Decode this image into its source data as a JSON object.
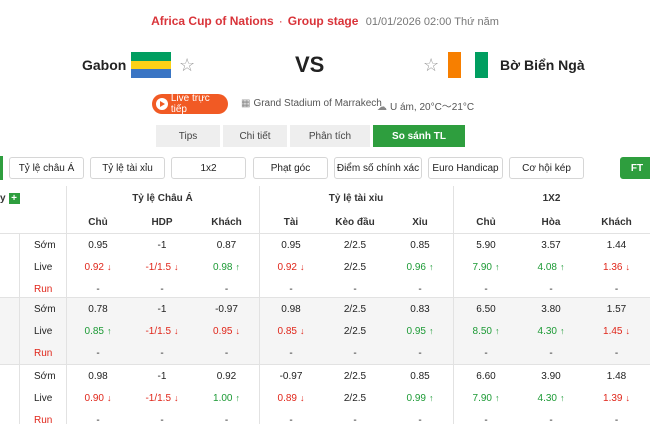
{
  "header": {
    "league": "Africa Cup of Nations",
    "separator": "·",
    "stage": "Group stage",
    "datetime": "01/01/2026 02:00 Thứ năm"
  },
  "match": {
    "home": "Gabon",
    "away": "Bờ Biển Ngà",
    "vs": "VS",
    "live_label": "Live trực tiếp",
    "stadium": "Grand Stadium of Marrakech",
    "weather": "U ám, 20°C～21°C"
  },
  "tabs": [
    "Tips",
    "Chi tiết",
    "Phân tích",
    "So sánh TL"
  ],
  "filters": [
    "Tỷ lệ châu Á",
    "Tỷ lệ tài xỉu",
    "1x2",
    "Phạt góc",
    "Điểm số chính xác",
    "Euro Handicap",
    "Cơ hội kép",
    "FT"
  ],
  "table": {
    "left_stub": "y",
    "groups": [
      "Tỷ lệ Châu Á",
      "Tỷ lệ tài xỉu",
      "1X2"
    ],
    "columns": [
      "Chủ",
      "HDP",
      "Khách",
      "Tài",
      "Kèo đầu",
      "Xỉu",
      "Chủ",
      "Hòa",
      "Khách"
    ],
    "row_labels": [
      "Sớm",
      "Live",
      "Run"
    ],
    "blocks": [
      {
        "rows": [
          [
            "0.95",
            "-1",
            "0.87",
            "0.95",
            "2/2.5",
            "0.85",
            "5.90",
            "3.57",
            "1.44"
          ],
          [
            "0.92",
            "-1/1.5",
            "0.98",
            "0.92",
            "2/2.5",
            "0.96",
            "7.90",
            "4.08",
            "1.36"
          ],
          [
            "-",
            "-",
            "-",
            "-",
            "-",
            "-",
            "-",
            "-",
            "-"
          ]
        ],
        "live_trend": [
          "down",
          "down",
          "up",
          "down",
          "",
          "up",
          "up",
          "up",
          "down"
        ]
      },
      {
        "rows": [
          [
            "0.78",
            "-1",
            "-0.97",
            "0.98",
            "2/2.5",
            "0.83",
            "6.50",
            "3.80",
            "1.57"
          ],
          [
            "0.85",
            "-1/1.5",
            "0.95",
            "0.85",
            "2/2.5",
            "0.95",
            "8.50",
            "4.30",
            "1.45"
          ],
          [
            "-",
            "-",
            "-",
            "-",
            "-",
            "-",
            "-",
            "-",
            "-"
          ]
        ],
        "live_trend": [
          "up",
          "down",
          "down",
          "down",
          "",
          "up",
          "up",
          "up",
          "down"
        ]
      },
      {
        "rows": [
          [
            "0.98",
            "-1",
            "0.92",
            "-0.97",
            "2/2.5",
            "0.85",
            "6.60",
            "3.90",
            "1.48"
          ],
          [
            "0.90",
            "-1/1.5",
            "1.00",
            "0.89",
            "2/2.5",
            "0.99",
            "7.90",
            "4.30",
            "1.39"
          ],
          [
            "-",
            "-",
            "-",
            "-",
            "-",
            "-",
            "-",
            "-",
            "-"
          ]
        ],
        "live_trend": [
          "down",
          "down",
          "up",
          "down",
          "",
          "up",
          "up",
          "up",
          "down"
        ]
      }
    ]
  },
  "colors": {
    "accent_green": "#2e9e3e",
    "accent_red": "#d9343a",
    "live_orange": "#f15a24",
    "gabon_flag": [
      "#009e60",
      "#fcd116",
      "#3a75c4"
    ],
    "ci_flag": [
      "#f77f00",
      "#ffffff",
      "#009e60"
    ]
  },
  "icons": {
    "favorite": "star-icon",
    "live": "play-icon",
    "stadium": "stadium-icon",
    "weather": "cloud-icon",
    "add": "plus-icon"
  }
}
